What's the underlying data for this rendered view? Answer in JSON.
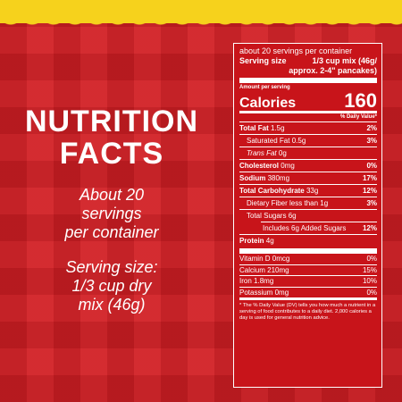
{
  "colors": {
    "background": "#d21e23",
    "accent_yellow": "#f6d21c",
    "text": "#ffffff"
  },
  "left": {
    "title_line1": "NUTRITION",
    "title_line2": "FACTS",
    "servings_lines": [
      "About 20",
      "servings",
      "per container"
    ],
    "serving_size_lines": [
      "Serving size:",
      "1/3 cup dry",
      "mix (46g)"
    ]
  },
  "label": {
    "servings_per_container": "about 20 servings per container",
    "serving_size_label": "Serving size",
    "serving_size_value_line1": "1/3 cup mix (46g/",
    "serving_size_value_line2": "approx. 2-4\" pancakes)",
    "amount_per_serving": "Amount per serving",
    "calories_label": "Calories",
    "calories_value": "160",
    "daily_value_header": "% Daily Value*",
    "nutrients": [
      {
        "name": "Total Fat",
        "amount": "1.5g",
        "dv": "2%",
        "bold": true,
        "indent": 0
      },
      {
        "name": "Saturated Fat",
        "amount": "0.5g",
        "dv": "3%",
        "bold": false,
        "indent": 1
      },
      {
        "name": "Trans Fat",
        "amount": "0g",
        "dv": "",
        "bold": false,
        "indent": 1,
        "italic_name": true
      },
      {
        "name": "Cholesterol",
        "amount": "0mg",
        "dv": "0%",
        "bold": true,
        "indent": 0
      },
      {
        "name": "Sodium",
        "amount": "380mg",
        "dv": "17%",
        "bold": true,
        "indent": 0
      },
      {
        "name": "Total Carbohydrate",
        "amount": "33g",
        "dv": "12%",
        "bold": true,
        "indent": 0
      },
      {
        "name": "Dietary Fiber",
        "amount": "less than 1g",
        "dv": "3%",
        "bold": false,
        "indent": 1
      },
      {
        "name": "Total Sugars",
        "amount": "6g",
        "dv": "",
        "bold": false,
        "indent": 1
      },
      {
        "name": "Includes",
        "amount": "6g Added Sugars",
        "dv": "12%",
        "bold": false,
        "indent": 2
      }
    ],
    "protein": {
      "name": "Protein",
      "amount": "4g"
    },
    "vitamins": [
      {
        "name": "Vitamin D",
        "amount": "0mcg",
        "dv": "0%"
      },
      {
        "name": "Calcium",
        "amount": "210mg",
        "dv": "15%"
      },
      {
        "name": "Iron",
        "amount": "1.8mg",
        "dv": "10%"
      },
      {
        "name": "Potassium",
        "amount": "0mg",
        "dv": "0%"
      }
    ],
    "footnote": "* The % Daily Value (DV) tells you how much a nutrient in a serving of food contributes to a daily diet. 2,000 calories a day is used for general nutrition advice."
  }
}
